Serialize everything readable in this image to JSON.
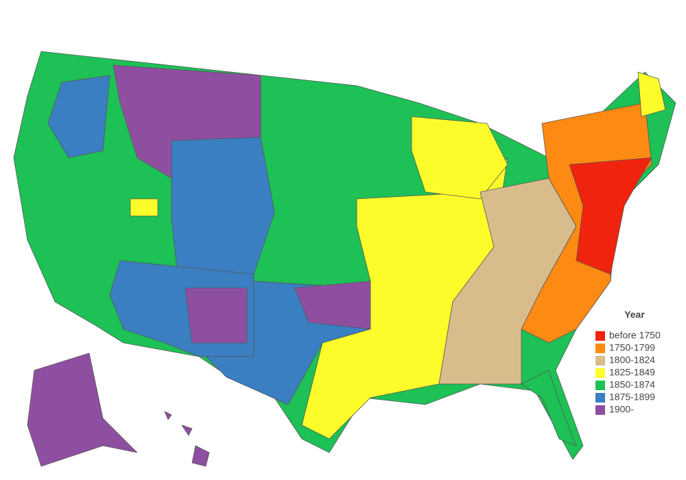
{
  "legend": {
    "title": "Year",
    "items": [
      {
        "label": "before 1750",
        "color": "#f0230e"
      },
      {
        "label": "1750-1799",
        "color": "#fd8a12"
      },
      {
        "label": "1800-1824",
        "color": "#d9bc8c"
      },
      {
        "label": "1825-1849",
        "color": "#fcfc2a"
      },
      {
        "label": "1850-1874",
        "color": "#1dc156"
      },
      {
        "label": "1875-1899",
        "color": "#3a7fc1"
      },
      {
        "label": "1900-",
        "color": "#8f4fa1"
      }
    ]
  }
}
